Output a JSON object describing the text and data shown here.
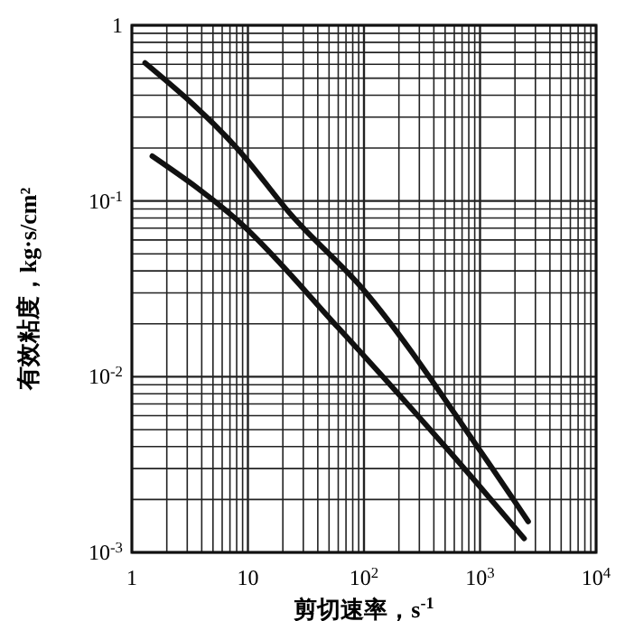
{
  "chart_data": {
    "type": "line",
    "xlabel": "剪切速率，s$^{-1}$",
    "ylabel": "有效粘度，kg·s/cm²",
    "log": "xy",
    "grid": true,
    "marker": "none",
    "line_style": "solid",
    "xlim": [
      1,
      10000
    ],
    "ylim": [
      0.001,
      1
    ],
    "xticks": [
      1,
      {
        "value": 2,
        "label": null
      },
      {
        "value": 3,
        "label": null
      },
      {
        "value": 4,
        "label": null
      },
      {
        "value": 5,
        "label": null
      },
      {
        "value": 6,
        "label": null
      },
      {
        "value": 7,
        "label": null
      },
      {
        "value": 8,
        "label": null
      },
      {
        "value": 9,
        "label": null
      },
      10,
      {
        "value": 20,
        "label": null
      },
      {
        "value": 30,
        "label": null
      },
      {
        "value": 40,
        "label": null
      },
      {
        "value": 50,
        "label": null
      },
      {
        "value": 60,
        "label": null
      },
      {
        "value": 70,
        "label": null
      },
      {
        "value": 80,
        "label": null
      },
      {
        "value": 90,
        "label": null
      },
      {
        "value": 100,
        "label": "10$^{2}$"
      },
      {
        "value": 200,
        "label": null
      },
      {
        "value": 300,
        "label": null
      },
      {
        "value": 400,
        "label": null
      },
      {
        "value": 500,
        "label": null
      },
      {
        "value": 600,
        "label": null
      },
      {
        "value": 700,
        "label": null
      },
      {
        "value": 800,
        "label": null
      },
      {
        "value": 900,
        "label": null
      },
      {
        "value": 1000,
        "label": "10$^{3}$"
      },
      {
        "value": 2000,
        "label": null
      },
      {
        "value": 3000,
        "label": null
      },
      {
        "value": 4000,
        "label": null
      },
      {
        "value": 5000,
        "label": null
      },
      {
        "value": 6000,
        "label": null
      },
      {
        "value": 7000,
        "label": null
      },
      {
        "value": 8000,
        "label": null
      },
      {
        "value": 9000,
        "label": null
      },
      {
        "value": 10000,
        "label": "10$^{4}$"
      }
    ],
    "yticks": [
      {
        "value": 0.001,
        "label": "10$^{-3}$"
      },
      {
        "value": 0.002,
        "label": null
      },
      {
        "value": 0.003,
        "label": null
      },
      {
        "value": 0.004,
        "label": null
      },
      {
        "value": 0.005,
        "label": null
      },
      {
        "value": 0.006,
        "label": null
      },
      {
        "value": 0.007,
        "label": null
      },
      {
        "value": 0.008,
        "label": null
      },
      {
        "value": 0.009,
        "label": null
      },
      {
        "value": 0.01,
        "label": "10$^{-2}$"
      },
      {
        "value": 0.02,
        "label": null
      },
      {
        "value": 0.03,
        "label": null
      },
      {
        "value": 0.04,
        "label": null
      },
      {
        "value": 0.05,
        "label": null
      },
      {
        "value": 0.06,
        "label": null
      },
      {
        "value": 0.07,
        "label": null
      },
      {
        "value": 0.08,
        "label": null
      },
      {
        "value": 0.09,
        "label": null
      },
      {
        "value": 0.1,
        "label": "10$^{-1}$"
      },
      {
        "value": 0.2,
        "label": null
      },
      {
        "value": 0.3,
        "label": null
      },
      {
        "value": 0.4,
        "label": null
      },
      {
        "value": 0.5,
        "label": null
      },
      {
        "value": 0.6,
        "label": null
      },
      {
        "value": 0.7,
        "label": null
      },
      {
        "value": 0.8,
        "label": null
      },
      {
        "value": 0.9,
        "label": null
      },
      1
    ],
    "series": [
      {
        "color": "#111111",
        "x": [
          1.3,
          8.6,
          23,
          100,
          1000,
          2600
        ],
        "values": [
          0.61,
          0.19,
          0.085,
          0.031,
          0.0038,
          0.0015
        ]
      },
      {
        "color": "#111111",
        "x": [
          1.5,
          8.6,
          60,
          930,
          2400
        ],
        "values": [
          0.18,
          0.075,
          0.019,
          0.0025,
          0.0012
        ]
      }
    ]
  }
}
